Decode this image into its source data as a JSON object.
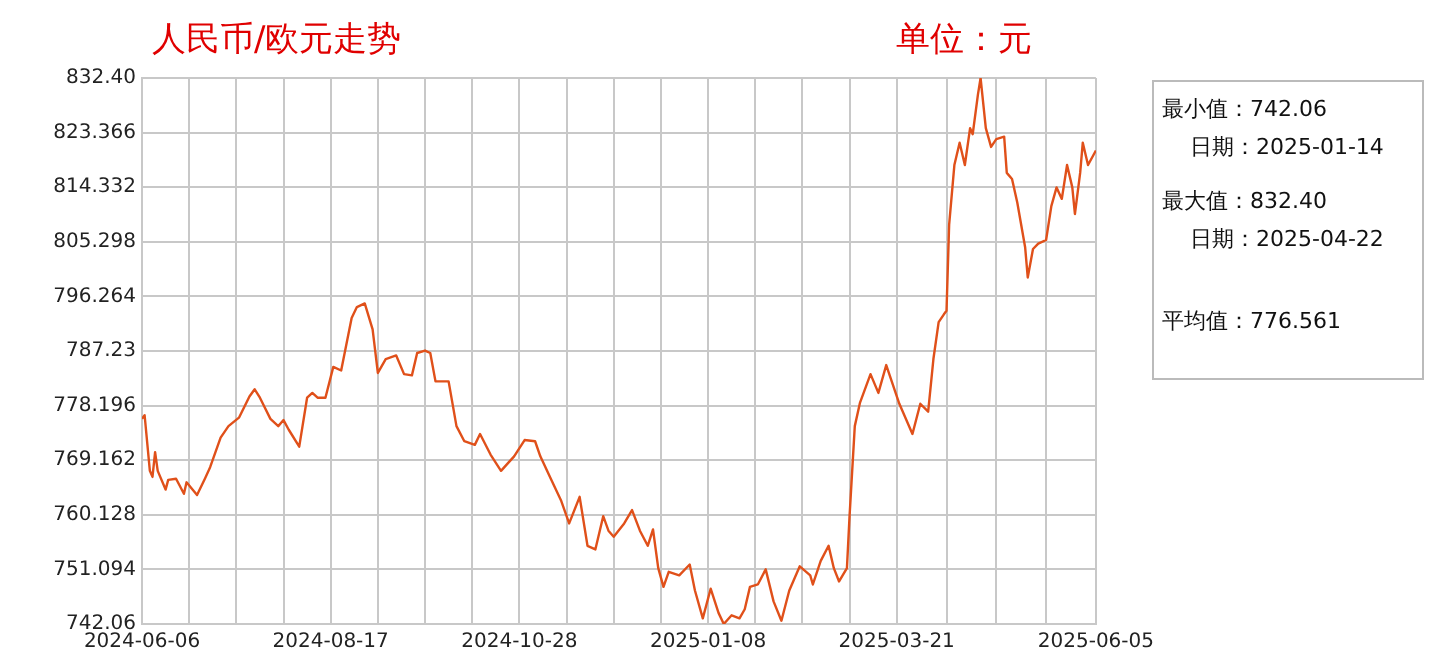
{
  "chart_data": {
    "type": "line",
    "title": "人民币/欧元走势",
    "annotations": [
      "单位：元",
      "最小值：742.06",
      "日期：2025-01-14",
      "最大值：832.40",
      "日期：2025-04-22",
      "平均值：776.561"
    ],
    "x": [
      "2024-06-06",
      "2024-06-07",
      "2024-06-09",
      "2024-06-10",
      "2024-06-11",
      "2024-06-12",
      "2024-06-15",
      "2024-06-16",
      "2024-06-19",
      "2024-06-22",
      "2024-06-23",
      "2024-06-27",
      "2024-06-30",
      "2024-07-02",
      "2024-07-06",
      "2024-07-09",
      "2024-07-13",
      "2024-07-17",
      "2024-07-19",
      "2024-07-21",
      "2024-07-25",
      "2024-07-28",
      "2024-07-30",
      "2024-08-01",
      "2024-08-05",
      "2024-08-08",
      "2024-08-10",
      "2024-08-12",
      "2024-08-15",
      "2024-08-18",
      "2024-08-21",
      "2024-08-25",
      "2024-08-27",
      "2024-08-30",
      "2024-09-02",
      "2024-09-04",
      "2024-09-07",
      "2024-09-11",
      "2024-09-14",
      "2024-09-17",
      "2024-09-19",
      "2024-09-22",
      "2024-09-24",
      "2024-09-26",
      "2024-10-01",
      "2024-10-04",
      "2024-10-07",
      "2024-10-11",
      "2024-10-13",
      "2024-10-17",
      "2024-10-21",
      "2024-10-26",
      "2024-10-30",
      "2024-11-03",
      "2024-11-05",
      "2024-11-09",
      "2024-11-13",
      "2024-11-16",
      "2024-11-20",
      "2024-11-23",
      "2024-11-26",
      "2024-11-29",
      "2024-12-01",
      "2024-12-03",
      "2024-12-07",
      "2024-12-10",
      "2024-12-13",
      "2024-12-16",
      "2024-12-18",
      "2024-12-20",
      "2024-12-22",
      "2024-12-24",
      "2024-12-28",
      "2025-01-01",
      "2025-01-03",
      "2025-01-06",
      "2025-01-09",
      "2025-01-12",
      "2025-01-14",
      "2025-01-17",
      "2025-01-20",
      "2025-01-22",
      "2025-01-24",
      "2025-01-27",
      "2025-01-30",
      "2025-02-02",
      "2025-02-05",
      "2025-02-08",
      "2025-02-12",
      "2025-02-16",
      "2025-02-17",
      "2025-02-20",
      "2025-02-23",
      "2025-02-25",
      "2025-02-27",
      "2025-03-02",
      "2025-03-03",
      "2025-03-05",
      "2025-03-07",
      "2025-03-11",
      "2025-03-14",
      "2025-03-17",
      "2025-03-22",
      "2025-03-27",
      "2025-03-30",
      "2025-04-02",
      "2025-04-04",
      "2025-04-06",
      "2025-04-08",
      "2025-04-09",
      "2025-04-10",
      "2025-04-12",
      "2025-04-14",
      "2025-04-16",
      "2025-04-18",
      "2025-04-19",
      "2025-04-21",
      "2025-04-22",
      "2025-04-24",
      "2025-04-26",
      "2025-04-28",
      "2025-05-01",
      "2025-05-02",
      "2025-05-04",
      "2025-05-06",
      "2025-05-09",
      "2025-05-10",
      "2025-05-12",
      "2025-05-14",
      "2025-05-17",
      "2025-05-19",
      "2025-05-21",
      "2025-05-23",
      "2025-05-25",
      "2025-05-27",
      "2025-05-28",
      "2025-05-30",
      "2025-05-31",
      "2025-06-02",
      "2025-06-05"
    ],
    "series": [
      {
        "color": "#e0501a",
        "values": [
          776.0,
          776.6,
          767.4,
          766.4,
          770.5,
          767.4,
          764.3,
          765.9,
          766.1,
          763.6,
          765.5,
          763.4,
          766.1,
          768.0,
          772.9,
          774.8,
          776.2,
          779.7,
          780.9,
          779.5,
          776.0,
          774.8,
          775.8,
          774.2,
          771.4,
          779.5,
          780.3,
          779.5,
          779.5,
          784.6,
          784.0,
          792.7,
          794.5,
          795.1,
          790.8,
          783.6,
          785.9,
          786.5,
          783.4,
          783.2,
          786.9,
          787.3,
          786.9,
          782.2,
          782.2,
          774.8,
          772.3,
          771.7,
          773.5,
          770.1,
          767.4,
          769.8,
          772.5,
          772.3,
          769.8,
          766.1,
          762.4,
          758.7,
          763.1,
          755.0,
          754.4,
          759.9,
          757.5,
          756.5,
          758.7,
          760.9,
          757.5,
          755.0,
          757.7,
          751.3,
          748.2,
          750.7,
          750.1,
          751.9,
          747.6,
          743.0,
          747.9,
          743.9,
          742.06,
          743.5,
          743.0,
          744.5,
          748.2,
          748.6,
          751.1,
          745.8,
          742.6,
          747.6,
          751.6,
          750.1,
          748.6,
          752.5,
          755.0,
          751.3,
          749.1,
          751.3,
          759.9,
          774.8,
          778.7,
          783.4,
          780.3,
          784.9,
          778.5,
          773.5,
          778.5,
          777.2,
          785.9,
          792.0,
          793.3,
          793.9,
          808.1,
          818.0,
          821.7,
          818.0,
          824.1,
          823.1,
          829.7,
          832.4,
          824.1,
          821.0,
          822.3,
          822.7,
          816.7,
          815.7,
          811.8,
          804.4,
          799.4,
          804.1,
          805.0,
          805.6,
          811.2,
          814.3,
          812.4,
          818.0,
          814.3,
          809.9,
          816.7,
          821.7,
          818.0,
          820.4
        ]
      }
    ],
    "xlim": [
      "2024-06-06",
      "2025-06-05"
    ],
    "xticks": [
      {
        "value": "2024-06-06",
        "label": "2024-06-06"
      },
      {
        "value": "2024-06-24",
        "label": null
      },
      {
        "value": "2024-07-12",
        "label": null
      },
      {
        "value": "2024-07-30",
        "label": null
      },
      {
        "value": "2024-08-17",
        "label": "2024-08-17"
      },
      {
        "value": "2024-09-04",
        "label": null
      },
      {
        "value": "2024-09-22",
        "label": null
      },
      {
        "value": "2024-10-10",
        "label": null
      },
      {
        "value": "2024-10-28",
        "label": "2024-10-28"
      },
      {
        "value": "2024-11-15",
        "label": null
      },
      {
        "value": "2024-12-03",
        "label": null
      },
      {
        "value": "2024-12-21",
        "label": null
      },
      {
        "value": "2025-01-08",
        "label": "2025-01-08"
      },
      {
        "value": "2025-01-26",
        "label": null
      },
      {
        "value": "2025-02-13",
        "label": null
      },
      {
        "value": "2025-03-03",
        "label": null
      },
      {
        "value": "2025-03-21",
        "label": "2025-03-21"
      },
      {
        "value": "2025-04-09",
        "label": null
      },
      {
        "value": "2025-04-28",
        "label": null
      },
      {
        "value": "2025-05-17",
        "label": null
      },
      {
        "value": "2025-06-05",
        "label": "2025-06-05"
      }
    ],
    "ylim": [
      742.06,
      832.4
    ],
    "yticks": [
      742.06,
      751.094,
      760.128,
      769.162,
      778.196,
      787.23,
      796.264,
      805.298,
      814.332,
      823.366,
      {
        "value": 832.4,
        "label": "832.40"
      }
    ],
    "grid": true,
    "legend": false,
    "marker": "none",
    "line_style": "solid"
  }
}
